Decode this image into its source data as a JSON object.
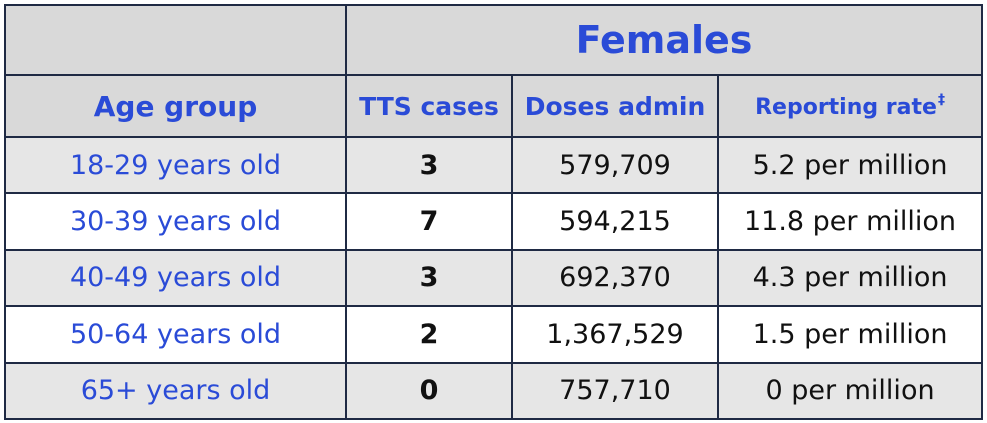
{
  "header": {
    "group_title": "Females",
    "age_group": "Age group",
    "tts_cases": "TTS cases",
    "doses_admin": "Doses admin",
    "reporting_rate": "Reporting rate",
    "reporting_rate_mark": "‡"
  },
  "rows": [
    {
      "age": "18-29 years old",
      "cases": "3",
      "doses": "579,709",
      "rate": "5.2 per million"
    },
    {
      "age": "30-39 years old",
      "cases": "7",
      "doses": "594,215",
      "rate": "11.8 per million"
    },
    {
      "age": "40-49 years old",
      "cases": "3",
      "doses": "692,370",
      "rate": "4.3 per million"
    },
    {
      "age": "50-64 years old",
      "cases": "2",
      "doses": "1,367,529",
      "rate": "1.5 per million"
    },
    {
      "age": "65+ years old",
      "cases": "0",
      "doses": "757,710",
      "rate": "0 per million"
    }
  ]
}
